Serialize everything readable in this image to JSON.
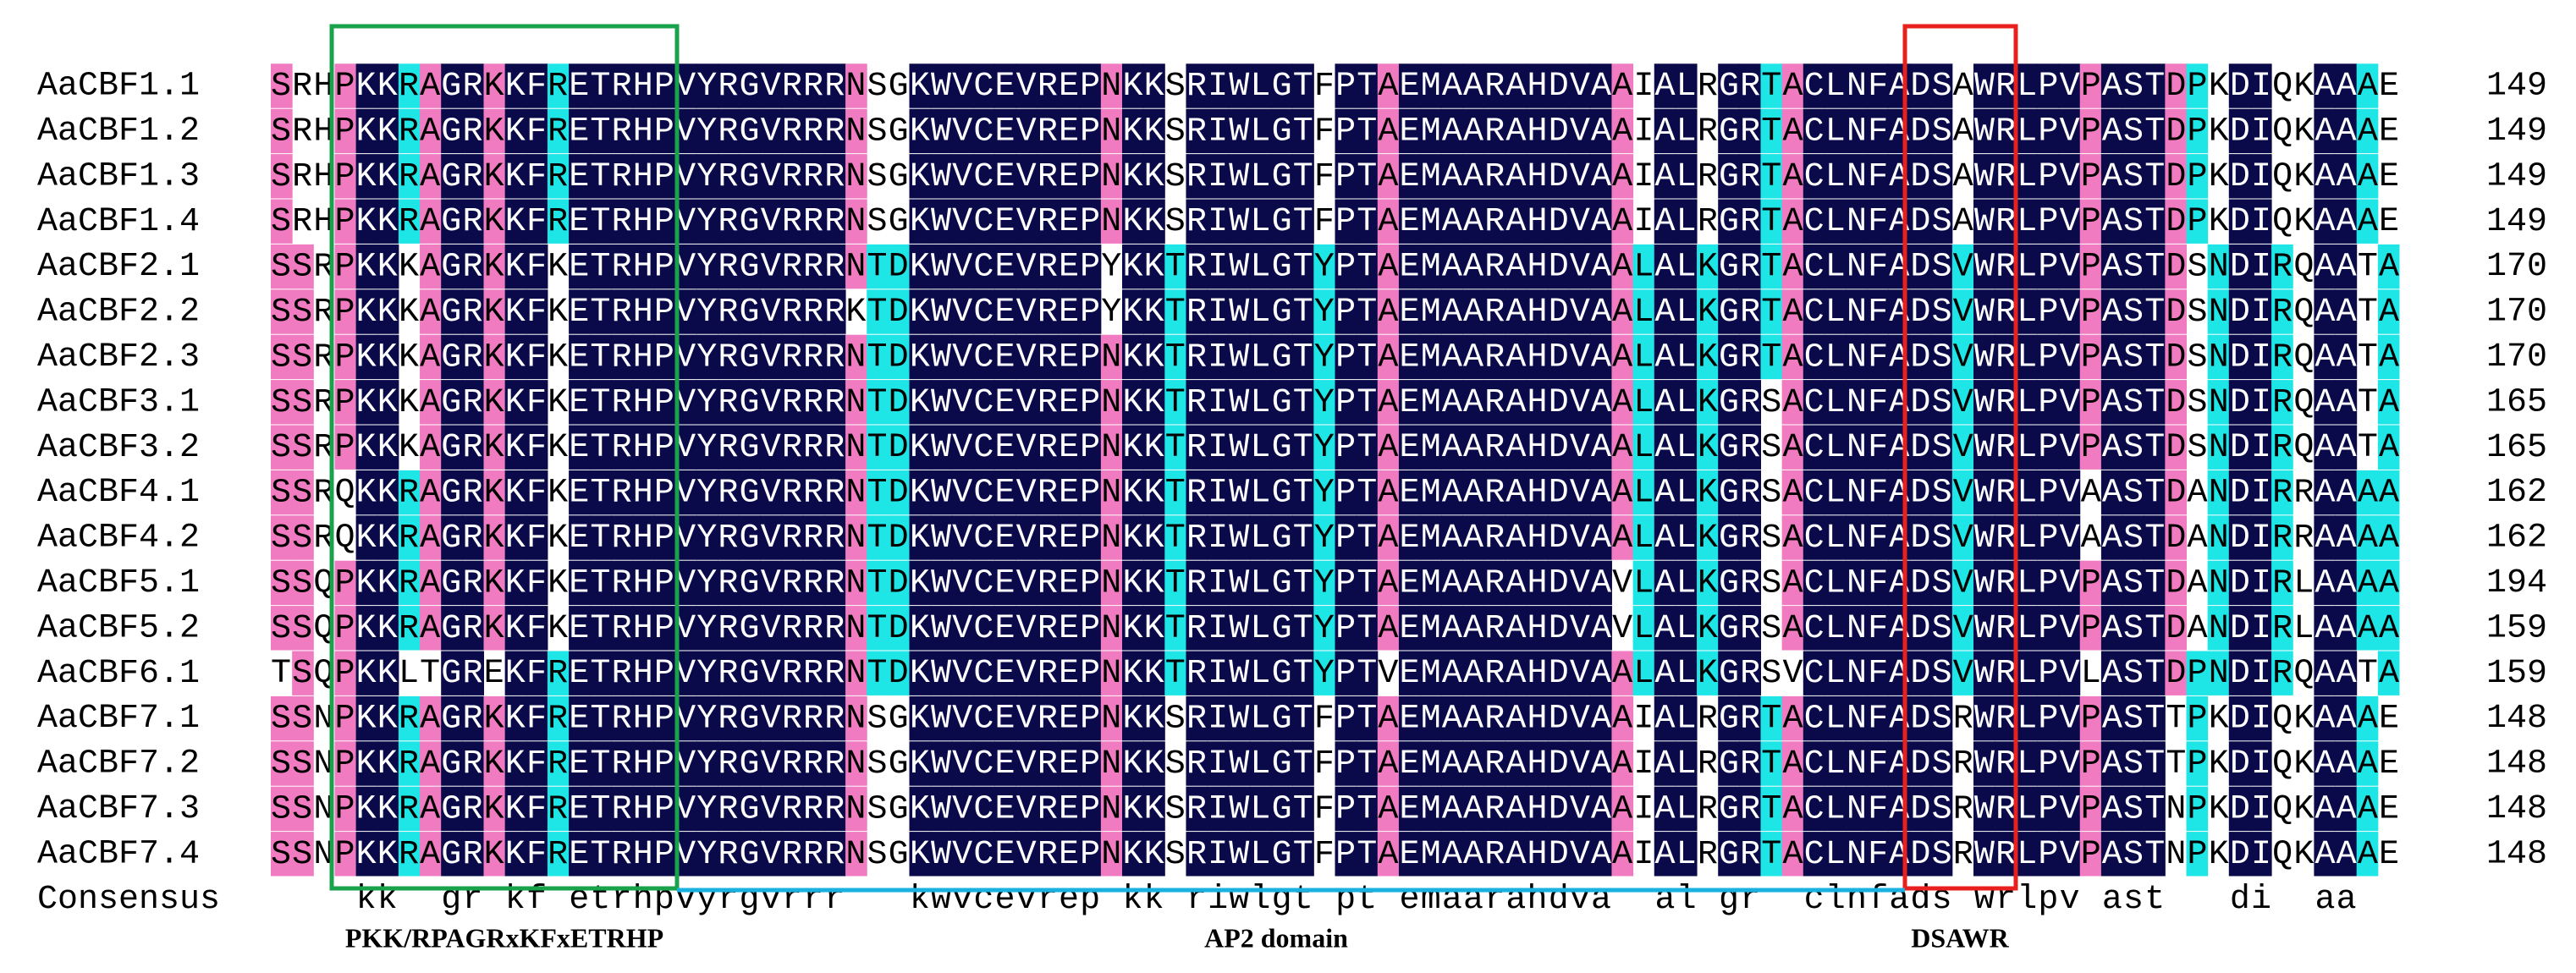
{
  "rows": [
    {
      "name": "AaCBF1.1",
      "sequence": "SRHPKKRAGRKKFRETRHPVYRGVRRRNSGKWVCEVREPNKKSRIWLGTFPTAEMAARAHDVAAIALRGRTACLNFADSAWRLPVPASTDPKDIQKAAAE",
      "length": 149
    },
    {
      "name": "AaCBF1.2",
      "sequence": "SRHPKKRAGRKKFRETRHPVYRGVRRRNSGKWVCEVREPNKKSRIWLGTFPTAEMAARAHDVAAIALRGRTACLNFADSAWRLPVPASTDPKDIQKAAAE",
      "length": 149
    },
    {
      "name": "AaCBF1.3",
      "sequence": "SRHPKKRAGRKKFRETRHPVYRGVRRRNSGKWVCEVREPNKKSRIWLGTFPTAEMAARAHDVAAIALRGRTACLNFADSAWRLPVPASTDPKDIQKAAAE",
      "length": 149
    },
    {
      "name": "AaCBF1.4",
      "sequence": "SRHPKKRAGRKKFRETRHPVYRGVRRRNSGKWVCEVREPNKKSRIWLGTFPTAEMAARAHDVAAIALRGRTACLNFADSAWRLPVPASTDPKDIQKAAAE",
      "length": 149
    },
    {
      "name": "AaCBF2.1",
      "sequence": "SSRPKKKAGRKKFKETRHPVYRGVRRRNTDKWVCEVREPYKKTRIWLGTYPTAEMAARAHDVAALALKGRTACLNFADSVWRLPVPASTDSNDIRQAATA",
      "length": 170
    },
    {
      "name": "AaCBF2.2",
      "sequence": "SSRPKKKAGRKKFKETRHPVYRGVRRRKTDKWVCEVREPYKKTRIWLGTYPTAEMAARAHDVAALALKGRTACLNFADSVWRLPVPASTDSNDIRQAATA",
      "length": 170
    },
    {
      "name": "AaCBF2.3",
      "sequence": "SSRPKKKAGRKKFKETRHPVYRGVRRRNTDKWVCEVREPNKKTRIWLGTYPTAEMAARAHDVAALALKGRTACLNFADSVWRLPVPASTDSNDIRQAATA",
      "length": 170
    },
    {
      "name": "AaCBF3.1",
      "sequence": "SSRPKKKAGRKKFKETRHPVYRGVRRRNTDKWVCEVREPNKKTRIWLGTYPTAEMAARAHDVAALALKGRSACLNFADSVWRLPVPASTDSNDIRQAATA",
      "length": 165
    },
    {
      "name": "AaCBF3.2",
      "sequence": "SSRPKKKAGRKKFKETRHPVYRGVRRRNTDKWVCEVREPNKKTRIWLGTYPTAEMAARAHDVAALALKGRSACLNFADSVWRLPVPASTDSNDIRQAATA",
      "length": 165
    },
    {
      "name": "AaCBF4.1",
      "sequence": "SSRQKKRAGRKKFKETRHPVYRGVRRRNTDKWVCEVREPNKKTRIWLGTYPTAEMAARAHDVAALALKGRSACLNFADSVWRLPVAASTDANDIRRAAAA",
      "length": 162
    },
    {
      "name": "AaCBF4.2",
      "sequence": "SSRQKKRAGRKKFKETRHPVYRGVRRRNTDKWVCEVREPNKKTRIWLGTYPTAEMAARAHDVAALALKGRSACLNFADSVWRLPVAASTDANDIRRAAAA",
      "length": 162
    },
    {
      "name": "AaCBF5.1",
      "sequence": "SSQPKKRAGRKKFKETRHPVYRGVRRRNTDKWVCEVREPNKKTRIWLGTYPTAEMAARAHDVAVLALKGRSACLNFADSVWRLPVPASTDANDIRLAAAA",
      "length": 194
    },
    {
      "name": "AaCBF5.2",
      "sequence": "SSQPKKRAGRKKFKETRHPVYRGVRRRNTDKWVCEVREPNKKTRIWLGTYPTAEMAARAHDVAVLALKGRSACLNFADSVWRLPVPASTDANDIRLAAAA",
      "length": 159
    },
    {
      "name": "AaCBF6.1",
      "sequence": "TSQPKKLTGREKFRETRHPVYRGVRRRNTDKWVCEVREPNKKTRIWLGTYPTVEMAARAHDVAALALKGRSVCLNFADSVWRLPVLASTDPNDIRQAATA",
      "length": 159
    },
    {
      "name": "AaCBF7.1",
      "sequence": "SSNPKKRAGRKKFRETRHPVYRGVRRRNSGKWVCEVREPNKKSRIWLGTFPTAEMAARAHDVAAIALRGRTACLNFADSRWRLPVPASTTPKDIQKAAAE",
      "length": 148
    },
    {
      "name": "AaCBF7.2",
      "sequence": "SSNPKKRAGRKKFRETRHPVYRGVRRRNSGKWVCEVREPNKKSRIWLGTFPTAEMAARAHDVAAIALRGRTACLNFADSRWRLPVPASTTPKDIQKAAAE",
      "length": 148
    },
    {
      "name": "AaCBF7.3",
      "sequence": "SSNPKKRAGRKKFRETRHPVYRGVRRRNSGKWVCEVREPNKKSRIWLGTFPTAEMAARAHDVAAIALRGRTACLNFADSRWRLPVPASTNPKDIQKAAAE",
      "length": 148
    },
    {
      "name": "AaCBF7.4",
      "sequence": "SSNPKKRAGRKKFRETRHPVYRGVRRRNSGKWVCEVREPNKKSRIWLGTFPTAEMAARAHDVAAIALRGRTACLNFADSRWRLPVPASTNPKDIQKAAAE",
      "length": 148
    }
  ],
  "consensus": {
    "name": "Consensus",
    "sequence": "    kk  gr kf etrhpvyrgvrrr   kwvcevrep kk riwlgt pt emaarahdva  al gr  clnfads wrlpv ast   di  aa  "
  },
  "annotations": {
    "motif": "PKK/RPAGRxKFxETRHP",
    "domain": "AP2 domain",
    "dsawr": "DSAWR"
  }
}
